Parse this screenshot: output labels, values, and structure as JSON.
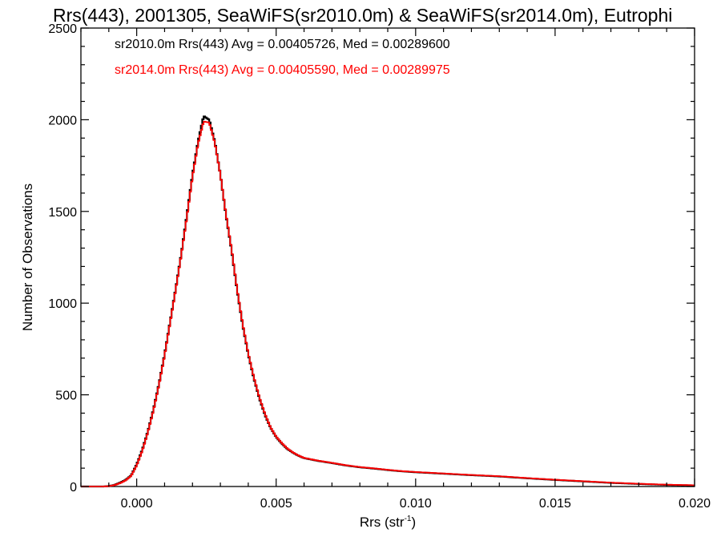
{
  "chart_data": {
    "type": "histogram",
    "title": "Rrs(443), 2001305, SeaWiFS(sr2010.0m) & SeaWiFS(sr2014.0m), Eutrophi",
    "xlabel": "Rrs (str",
    "xlabel_sup": "-1",
    "xlabel_close": ")",
    "ylabel": "Number of Observations",
    "xlim": [
      -0.002,
      0.02
    ],
    "ylim": [
      0,
      2500
    ],
    "xticks": [
      {
        "value": 0.0,
        "label": "0.000"
      },
      {
        "value": 0.005,
        "label": "0.005"
      },
      {
        "value": 0.01,
        "label": "0.010"
      },
      {
        "value": 0.015,
        "label": "0.015"
      },
      {
        "value": 0.02,
        "label": "0.020"
      }
    ],
    "yticks": [
      {
        "value": 0,
        "label": "0"
      },
      {
        "value": 500,
        "label": "500"
      },
      {
        "value": 1000,
        "label": "1000"
      },
      {
        "value": 1500,
        "label": "1500"
      },
      {
        "value": 2000,
        "label": "2000"
      },
      {
        "value": 2500,
        "label": "2500"
      }
    ],
    "grid": false,
    "annotations": [
      {
        "text": "sr2010.0m Rrs(443) Avg = 0.00405726, Med = 0.00289600",
        "color": "#000000"
      },
      {
        "text": "sr2014.0m Rrs(443) Avg = 0.00405590, Med = 0.00289975",
        "color": "#ff0000"
      }
    ],
    "series": [
      {
        "color": "#000000",
        "points": [
          [
            -0.002,
            0
          ],
          [
            -0.0012,
            0
          ],
          [
            -0.001,
            2
          ],
          [
            -0.0008,
            8
          ],
          [
            -0.0006,
            20
          ],
          [
            -0.0004,
            35
          ],
          [
            -0.0002,
            60
          ],
          [
            0.0,
            120
          ],
          [
            0.0002,
            200
          ],
          [
            0.0004,
            300
          ],
          [
            0.0006,
            420
          ],
          [
            0.0008,
            560
          ],
          [
            0.001,
            720
          ],
          [
            0.0012,
            900
          ],
          [
            0.0014,
            1080
          ],
          [
            0.0016,
            1270
          ],
          [
            0.0018,
            1480
          ],
          [
            0.002,
            1700
          ],
          [
            0.0022,
            1880
          ],
          [
            0.0024,
            2020
          ],
          [
            0.0026,
            2000
          ],
          [
            0.0028,
            1880
          ],
          [
            0.003,
            1700
          ],
          [
            0.0032,
            1480
          ],
          [
            0.0034,
            1290
          ],
          [
            0.0036,
            1070
          ],
          [
            0.0038,
            880
          ],
          [
            0.004,
            720
          ],
          [
            0.0042,
            590
          ],
          [
            0.0044,
            480
          ],
          [
            0.0046,
            390
          ],
          [
            0.0048,
            320
          ],
          [
            0.005,
            270
          ],
          [
            0.0052,
            235
          ],
          [
            0.0054,
            205
          ],
          [
            0.0056,
            185
          ],
          [
            0.0058,
            168
          ],
          [
            0.006,
            155
          ],
          [
            0.0065,
            140
          ],
          [
            0.007,
            128
          ],
          [
            0.0075,
            115
          ],
          [
            0.008,
            105
          ],
          [
            0.0085,
            98
          ],
          [
            0.009,
            90
          ],
          [
            0.0095,
            83
          ],
          [
            0.01,
            78
          ],
          [
            0.011,
            70
          ],
          [
            0.012,
            62
          ],
          [
            0.013,
            55
          ],
          [
            0.014,
            45
          ],
          [
            0.015,
            36
          ],
          [
            0.016,
            28
          ],
          [
            0.017,
            20
          ],
          [
            0.018,
            14
          ],
          [
            0.019,
            9
          ],
          [
            0.02,
            6
          ]
        ]
      },
      {
        "color": "#ff0000",
        "points": [
          [
            -0.002,
            0
          ],
          [
            -0.0012,
            0
          ],
          [
            -0.001,
            2
          ],
          [
            -0.0008,
            7
          ],
          [
            -0.0006,
            18
          ],
          [
            -0.0004,
            33
          ],
          [
            -0.0002,
            58
          ],
          [
            0.0,
            115
          ],
          [
            0.0002,
            195
          ],
          [
            0.0004,
            295
          ],
          [
            0.0006,
            415
          ],
          [
            0.0008,
            555
          ],
          [
            0.001,
            715
          ],
          [
            0.0012,
            895
          ],
          [
            0.0014,
            1075
          ],
          [
            0.0016,
            1265
          ],
          [
            0.0018,
            1470
          ],
          [
            0.002,
            1690
          ],
          [
            0.0022,
            1870
          ],
          [
            0.0024,
            1990
          ],
          [
            0.0026,
            1985
          ],
          [
            0.0028,
            1875
          ],
          [
            0.003,
            1700
          ],
          [
            0.0032,
            1485
          ],
          [
            0.0034,
            1295
          ],
          [
            0.0036,
            1075
          ],
          [
            0.0038,
            885
          ],
          [
            0.004,
            725
          ],
          [
            0.0042,
            595
          ],
          [
            0.0044,
            485
          ],
          [
            0.0046,
            395
          ],
          [
            0.0048,
            322
          ],
          [
            0.005,
            272
          ],
          [
            0.0052,
            237
          ],
          [
            0.0054,
            207
          ],
          [
            0.0056,
            186
          ],
          [
            0.0058,
            169
          ],
          [
            0.006,
            156
          ],
          [
            0.0065,
            141
          ],
          [
            0.007,
            129
          ],
          [
            0.0075,
            116
          ],
          [
            0.008,
            106
          ],
          [
            0.0085,
            99
          ],
          [
            0.009,
            91
          ],
          [
            0.0095,
            84
          ],
          [
            0.01,
            79
          ],
          [
            0.011,
            71
          ],
          [
            0.012,
            63
          ],
          [
            0.013,
            56
          ],
          [
            0.014,
            46
          ],
          [
            0.015,
            37
          ],
          [
            0.016,
            29
          ],
          [
            0.017,
            21
          ],
          [
            0.018,
            15
          ],
          [
            0.019,
            10
          ],
          [
            0.02,
            7
          ]
        ]
      }
    ]
  }
}
